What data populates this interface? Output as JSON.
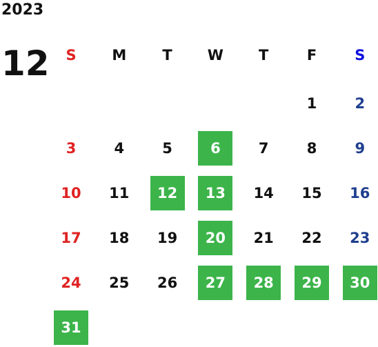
{
  "year": "2023",
  "month": "12",
  "weekdays": [
    "S",
    "M",
    "T",
    "W",
    "T",
    "F",
    "S"
  ],
  "weeks": [
    [
      null,
      null,
      null,
      null,
      null,
      {
        "day": "1"
      },
      {
        "day": "2"
      }
    ],
    [
      {
        "day": "3"
      },
      {
        "day": "4"
      },
      {
        "day": "5"
      },
      {
        "day": "6",
        "highlight": true
      },
      {
        "day": "7"
      },
      {
        "day": "8"
      },
      {
        "day": "9"
      }
    ],
    [
      {
        "day": "10"
      },
      {
        "day": "11"
      },
      {
        "day": "12",
        "highlight": true
      },
      {
        "day": "13",
        "highlight": true
      },
      {
        "day": "14"
      },
      {
        "day": "15"
      },
      {
        "day": "16"
      }
    ],
    [
      {
        "day": "17"
      },
      {
        "day": "18"
      },
      {
        "day": "19"
      },
      {
        "day": "20",
        "highlight": true
      },
      {
        "day": "21"
      },
      {
        "day": "22"
      },
      {
        "day": "23"
      }
    ],
    [
      {
        "day": "24"
      },
      {
        "day": "25"
      },
      {
        "day": "26"
      },
      {
        "day": "27",
        "highlight": true
      },
      {
        "day": "28",
        "highlight": true
      },
      {
        "day": "29",
        "highlight": true
      },
      {
        "day": "30",
        "highlight": true
      }
    ],
    [
      {
        "day": "31",
        "highlight": true
      },
      null,
      null,
      null,
      null,
      null,
      null
    ]
  ]
}
